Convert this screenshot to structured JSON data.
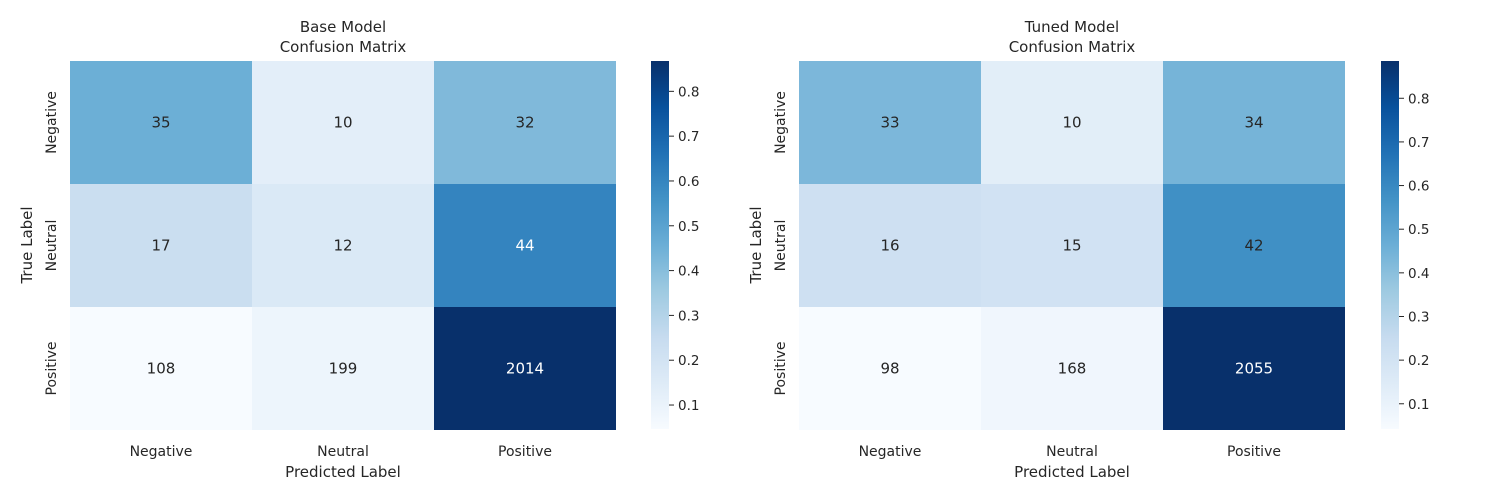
{
  "chart_data": [
    {
      "type": "heatmap",
      "title_line1": "Base Model",
      "title_line2": "Confusion Matrix",
      "xlabel": "Predicted Label",
      "ylabel": "True Label",
      "x_categories": [
        "Negative",
        "Neutral",
        "Positive"
      ],
      "y_categories": [
        "Negative",
        "Neutral",
        "Positive"
      ],
      "values": [
        [
          35,
          10,
          32
        ],
        [
          17,
          12,
          44
        ],
        [
          108,
          199,
          2014
        ]
      ],
      "normalized": [
        [
          0.4545,
          0.1299,
          0.4156
        ],
        [
          0.2329,
          0.1644,
          0.6027
        ],
        [
          0.0465,
          0.0857,
          0.8677
        ]
      ],
      "colorbar": {
        "min": 0.0465,
        "max": 0.8677,
        "ticks": [
          0.1,
          0.2,
          0.3,
          0.4,
          0.5,
          0.6,
          0.7,
          0.8
        ],
        "tick_labels": [
          "0.1",
          "0.2",
          "0.3",
          "0.4",
          "0.5",
          "0.6",
          "0.7",
          "0.8"
        ]
      },
      "colormap": "Blues"
    },
    {
      "type": "heatmap",
      "title_line1": "Tuned Model",
      "title_line2": "Confusion Matrix",
      "xlabel": "Predicted Label",
      "ylabel": "True Label",
      "x_categories": [
        "Negative",
        "Neutral",
        "Positive"
      ],
      "y_categories": [
        "Negative",
        "Neutral",
        "Positive"
      ],
      "values": [
        [
          33,
          10,
          34
        ],
        [
          16,
          15,
          42
        ],
        [
          98,
          168,
          2055
        ]
      ],
      "normalized": [
        [
          0.4286,
          0.1299,
          0.4416
        ],
        [
          0.2192,
          0.2055,
          0.5753
        ],
        [
          0.0422,
          0.0724,
          0.8854
        ]
      ],
      "colorbar": {
        "min": 0.0422,
        "max": 0.8854,
        "ticks": [
          0.1,
          0.2,
          0.3,
          0.4,
          0.5,
          0.6,
          0.7,
          0.8
        ],
        "tick_labels": [
          "0.1",
          "0.2",
          "0.3",
          "0.4",
          "0.5",
          "0.6",
          "0.7",
          "0.8"
        ]
      },
      "colormap": "Blues"
    }
  ]
}
